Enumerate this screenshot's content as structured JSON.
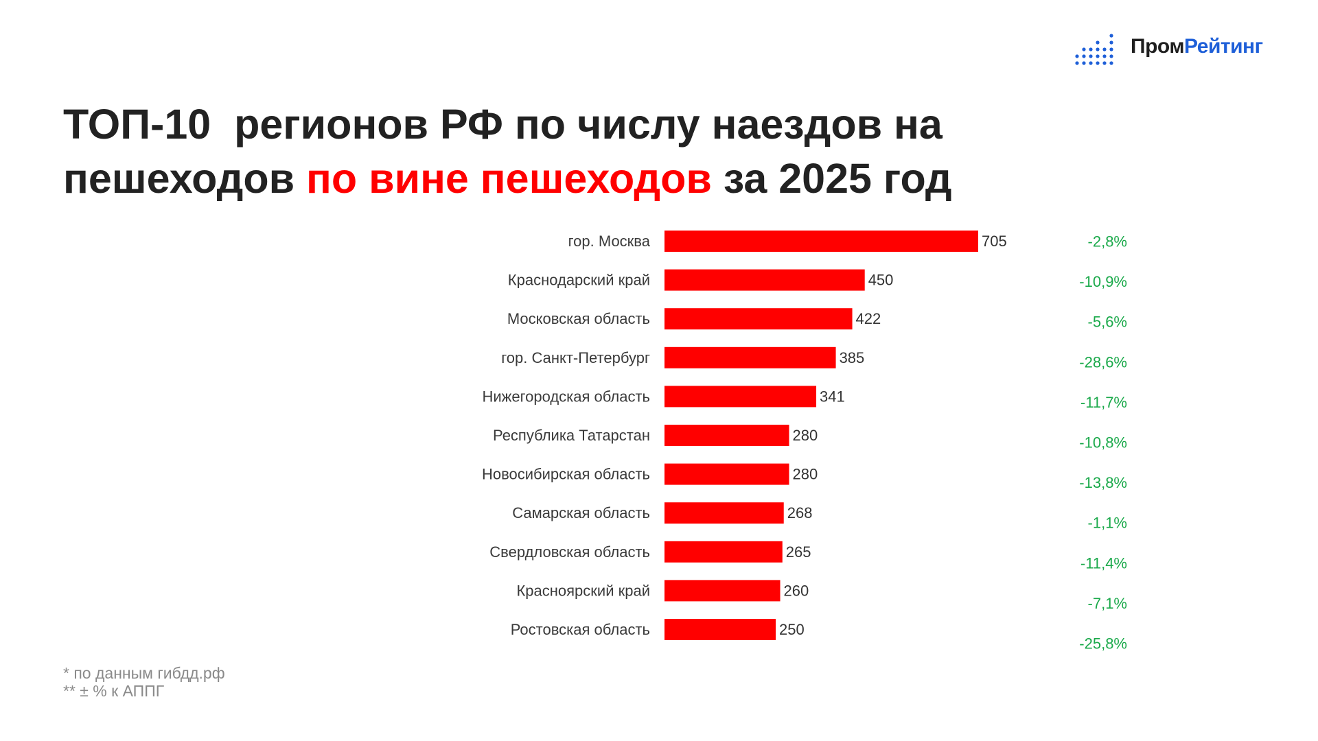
{
  "brand": {
    "part1": "Пром",
    "part2": "Рейтинг",
    "colors": {
      "dark": "#1f1f1f",
      "blue": "#1e5fd8"
    }
  },
  "title": {
    "line1": "ТОП-10  регионов РФ по числу наездов на",
    "line2_before": "пешеходов ",
    "line2_highlight": "по вине пешеходов",
    "line2_after": " за 2025 год"
  },
  "chart_data": {
    "type": "bar",
    "orientation": "horizontal",
    "categories": [
      "гор. Москва",
      "Краснодарский край",
      "Московская область",
      "гор. Санкт-Петербург",
      "Нижегородская область",
      "Республика Татарстан",
      "Новосибирская область",
      "Самарская область",
      "Свердловская область",
      "Красноярский край",
      "Ростовская область"
    ],
    "values": [
      705,
      450,
      422,
      385,
      341,
      280,
      280,
      268,
      265,
      260,
      250
    ],
    "value_labels": [
      "705",
      "450",
      "422",
      "385",
      "341",
      "280",
      "280",
      "268",
      "265",
      "260",
      "250"
    ],
    "changes": [
      "-2,8%",
      "-10,9%",
      "-5,6%",
      "-28,6%",
      "-11,7%",
      "-10,8%",
      "-13,8%",
      "-1,1%",
      "-11,4%",
      "-7,1%",
      "-25,8%"
    ],
    "bar_color": "#ff0000",
    "change_color": "#1aa94a",
    "xlim": [
      0,
      705
    ],
    "grid": false,
    "legend": "none"
  },
  "footnotes": [
    "* по данным гибдд.рф",
    "** ± % к АППГ"
  ]
}
